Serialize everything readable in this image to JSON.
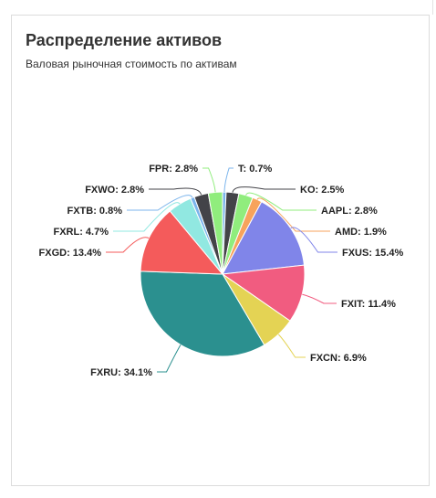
{
  "card": {
    "title": "Распределение активов",
    "subtitle": "Валовая рыночная стоимость по активам"
  },
  "chart_data": {
    "type": "pie",
    "title": "Распределение активов",
    "subtitle": "Валовая рыночная стоимость по активам",
    "slices": [
      {
        "name": "T",
        "value": 0.7,
        "label": "T: 0.7%",
        "color": "#7cb5ec"
      },
      {
        "name": "KO",
        "value": 2.5,
        "label": "KO: 2.5%",
        "color": "#434348"
      },
      {
        "name": "AAPL",
        "value": 2.8,
        "label": "AAPL: 2.8%",
        "color": "#90ed7d"
      },
      {
        "name": "AMD",
        "value": 1.9,
        "label": "AMD: 1.9%",
        "color": "#f7a35c"
      },
      {
        "name": "FXUS",
        "value": 15.4,
        "label": "FXUS: 15.4%",
        "color": "#8085e9"
      },
      {
        "name": "FXIT",
        "value": 11.4,
        "label": "FXIT: 11.4%",
        "color": "#f15c80"
      },
      {
        "name": "FXCN",
        "value": 6.9,
        "label": "FXCN: 6.9%",
        "color": "#e4d354"
      },
      {
        "name": "FXRU",
        "value": 34.1,
        "label": "FXRU: 34.1%",
        "color": "#2b908f"
      },
      {
        "name": "FXGD",
        "value": 13.4,
        "label": "FXGD: 13.4%",
        "color": "#f45b5b"
      },
      {
        "name": "FXRL",
        "value": 4.7,
        "label": "FXRL: 4.7%",
        "color": "#91e8e1"
      },
      {
        "name": "FXTB",
        "value": 0.8,
        "label": "FXTB: 0.8%",
        "color": "#7cb5ec"
      },
      {
        "name": "FXWO",
        "value": 2.8,
        "label": "FXWO: 2.8%",
        "color": "#434348"
      },
      {
        "name": "FPR",
        "value": 2.8,
        "label": "FPR: 2.8%",
        "color": "#90ed7d"
      }
    ]
  }
}
